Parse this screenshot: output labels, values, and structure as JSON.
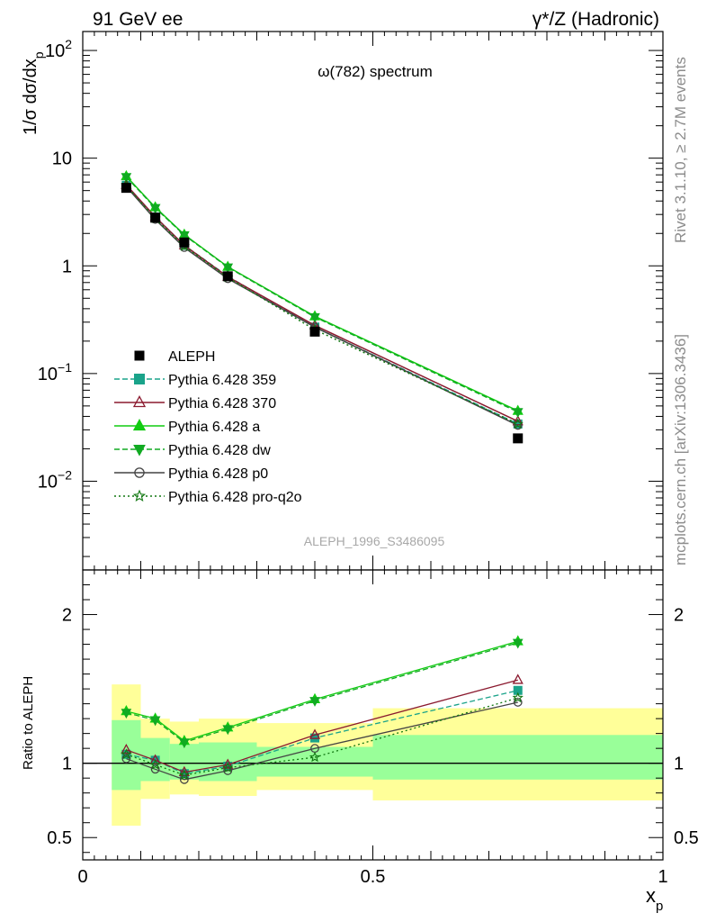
{
  "header": {
    "left": "91 GeV ee",
    "right": "γ*/Z (Hadronic)",
    "side_top": "Rivet 3.1.10, ≥ 2.7M events",
    "side_bottom": "mcplots.cern.ch [arXiv:1306.3436]"
  },
  "chart_data": [
    {
      "type": "line",
      "title": "ω(782) spectrum",
      "watermark": "ALEPH_1996_S3486095",
      "ylabel": "1/σ dσ/dx_p",
      "xlabel": "",
      "xlim": [
        0,
        1
      ],
      "ylim": [
        0.0015,
        150
      ],
      "yscale": "log",
      "ytick_values": [
        0.01,
        0.1,
        1,
        10,
        100
      ],
      "ytick_labels": [
        {
          "base": "10",
          "exp": "−2"
        },
        {
          "base": "10",
          "exp": "−1"
        },
        {
          "base": "1",
          "exp": ""
        },
        {
          "base": "10",
          "exp": ""
        },
        {
          "base": "10",
          "exp": "2"
        }
      ],
      "legend_placement": "left",
      "x": [
        0.075,
        0.125,
        0.175,
        0.25,
        0.4,
        0.75
      ],
      "data": {
        "name": "ALEPH",
        "values": [
          5.3,
          2.8,
          1.65,
          0.8,
          0.245,
          0.025
        ],
        "band_edges": [
          0.05,
          0.1,
          0.15,
          0.2,
          0.3,
          0.5,
          1.0
        ]
      },
      "series": [
        {
          "name": "Pythia 6.428 359",
          "color": "#1aa38a",
          "dash": "6,3",
          "marker": "square",
          "values": [
            5.6,
            2.85,
            1.55,
            0.8,
            0.27,
            0.034
          ]
        },
        {
          "name": "Pythia 6.428 370",
          "color": "#8b1a2f",
          "dash": "",
          "marker": "triangle-open",
          "values": [
            5.65,
            2.85,
            1.55,
            0.79,
            0.28,
            0.036
          ]
        },
        {
          "name": "Pythia 6.428 a",
          "color": "#11cc11",
          "dash": "",
          "marker": "triangle",
          "values": [
            6.8,
            3.5,
            1.95,
            0.98,
            0.34,
            0.045
          ]
        },
        {
          "name": "Pythia 6.428 dw",
          "color": "#11aa22",
          "dash": "6,3",
          "marker": "triangle-down",
          "values": [
            6.7,
            3.45,
            1.93,
            0.97,
            0.335,
            0.044
          ]
        },
        {
          "name": "Pythia 6.428 p0",
          "color": "#444444",
          "dash": "",
          "marker": "circle-open",
          "values": [
            5.45,
            2.7,
            1.48,
            0.76,
            0.27,
            0.033
          ]
        },
        {
          "name": "Pythia 6.428 pro-q2o",
          "color": "#117711",
          "dash": "2,3",
          "marker": "star-open",
          "values": [
            5.6,
            2.75,
            1.52,
            0.78,
            0.255,
            0.034
          ]
        }
      ]
    },
    {
      "type": "line",
      "ylabel": "Ratio to ALEPH",
      "xlabel": "x_p",
      "xlim": [
        0,
        1
      ],
      "ylim": [
        0.35,
        2.3
      ],
      "xtick_labels": [
        "0",
        "0.5",
        "1"
      ],
      "xtick_values": [
        0,
        0.5,
        1
      ],
      "ytick_labels": [
        "0.5",
        "1",
        "2"
      ],
      "ytick_values": [
        0.5,
        1,
        2
      ],
      "reference_line": 1,
      "bands": [
        {
          "x0": 0.05,
          "x1": 0.1,
          "green": [
            0.82,
            1.29
          ],
          "yellow": [
            0.58,
            1.53
          ]
        },
        {
          "x0": 0.1,
          "x1": 0.15,
          "green": [
            0.88,
            1.17
          ],
          "yellow": [
            0.76,
            1.3
          ]
        },
        {
          "x0": 0.15,
          "x1": 0.2,
          "green": [
            0.89,
            1.13
          ],
          "yellow": [
            0.79,
            1.28
          ]
        },
        {
          "x0": 0.2,
          "x1": 0.3,
          "green": [
            0.88,
            1.14
          ],
          "yellow": [
            0.78,
            1.3
          ]
        },
        {
          "x0": 0.3,
          "x1": 0.5,
          "green": [
            0.91,
            1.11
          ],
          "yellow": [
            0.82,
            1.27
          ]
        },
        {
          "x0": 0.5,
          "x1": 1.0,
          "green": [
            0.89,
            1.19
          ],
          "yellow": [
            0.75,
            1.37
          ]
        }
      ],
      "series": [
        {
          "name": "Pythia 6.428 359",
          "values": [
            1.06,
            1.02,
            0.93,
            0.98,
            1.17,
            1.49
          ]
        },
        {
          "name": "Pythia 6.428 370",
          "values": [
            1.09,
            1.02,
            0.94,
            0.99,
            1.19,
            1.56
          ]
        },
        {
          "name": "Pythia 6.428 a",
          "values": [
            1.35,
            1.3,
            1.15,
            1.24,
            1.43,
            1.82
          ]
        },
        {
          "name": "Pythia 6.428 dw",
          "values": [
            1.34,
            1.29,
            1.14,
            1.23,
            1.42,
            1.81
          ]
        },
        {
          "name": "Pythia 6.428 p0",
          "values": [
            1.03,
            0.96,
            0.89,
            0.95,
            1.1,
            1.41
          ]
        },
        {
          "name": "Pythia 6.428 pro-q2o",
          "values": [
            1.06,
            0.99,
            0.92,
            0.97,
            1.04,
            1.44
          ]
        }
      ]
    }
  ]
}
